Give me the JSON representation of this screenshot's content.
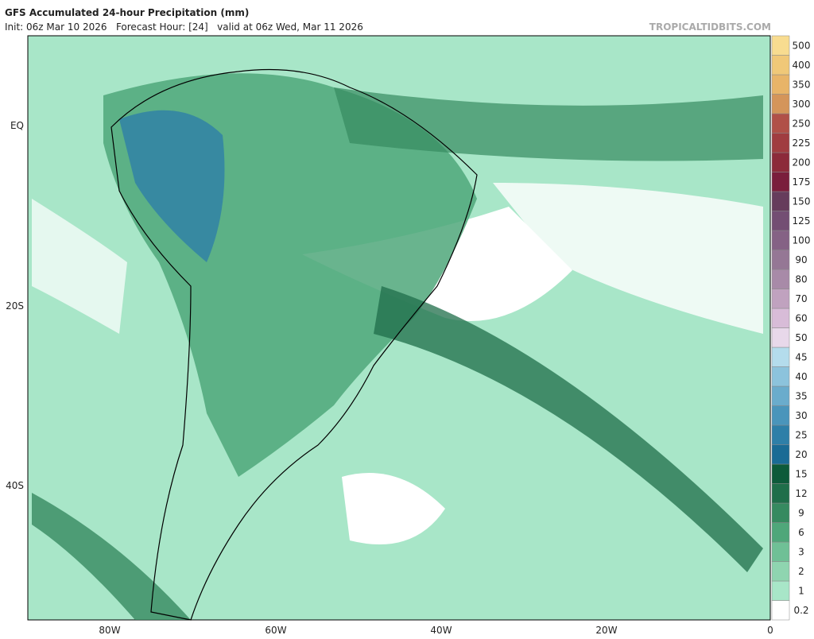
{
  "header": {
    "title": "GFS Accumulated 24-hour Precipitation (mm)",
    "subtitle": "Init: 06z Mar 10 2026   Forecast Hour: [24]   valid at 06z Wed, Mar 11 2026",
    "source": "TROPICALTIDBITS.COM"
  },
  "map": {
    "lon_labels": [
      "80W",
      "60W",
      "40W",
      "20W",
      "0"
    ],
    "lat_labels": [
      "EQ",
      "20S",
      "40S"
    ]
  },
  "colorbar": {
    "levels": [
      0.2,
      1,
      2,
      3,
      6,
      9,
      12,
      15,
      20,
      25,
      30,
      35,
      40,
      45,
      50,
      60,
      70,
      80,
      90,
      100,
      125,
      150,
      175,
      200,
      225,
      250,
      300,
      350,
      400,
      500
    ],
    "colors": [
      "#ffffff",
      "#a8e6c8",
      "#8fd5b0",
      "#6fc096",
      "#4fa77a",
      "#368a60",
      "#1f6e4a",
      "#0d5a3a",
      "#1a6b95",
      "#2e7fa8",
      "#4a95bb",
      "#6aaccc",
      "#8cc3dc",
      "#b4dcec",
      "#e8d8ea",
      "#d8bcd8",
      "#c0a2bf",
      "#a88aa8",
      "#957795",
      "#856285",
      "#734e73",
      "#663c5c",
      "#7a1e3c",
      "#8c2a3a",
      "#a03c40",
      "#b05048",
      "#d4955a",
      "#e8b468",
      "#f0c878",
      "#f8dc90"
    ]
  }
}
